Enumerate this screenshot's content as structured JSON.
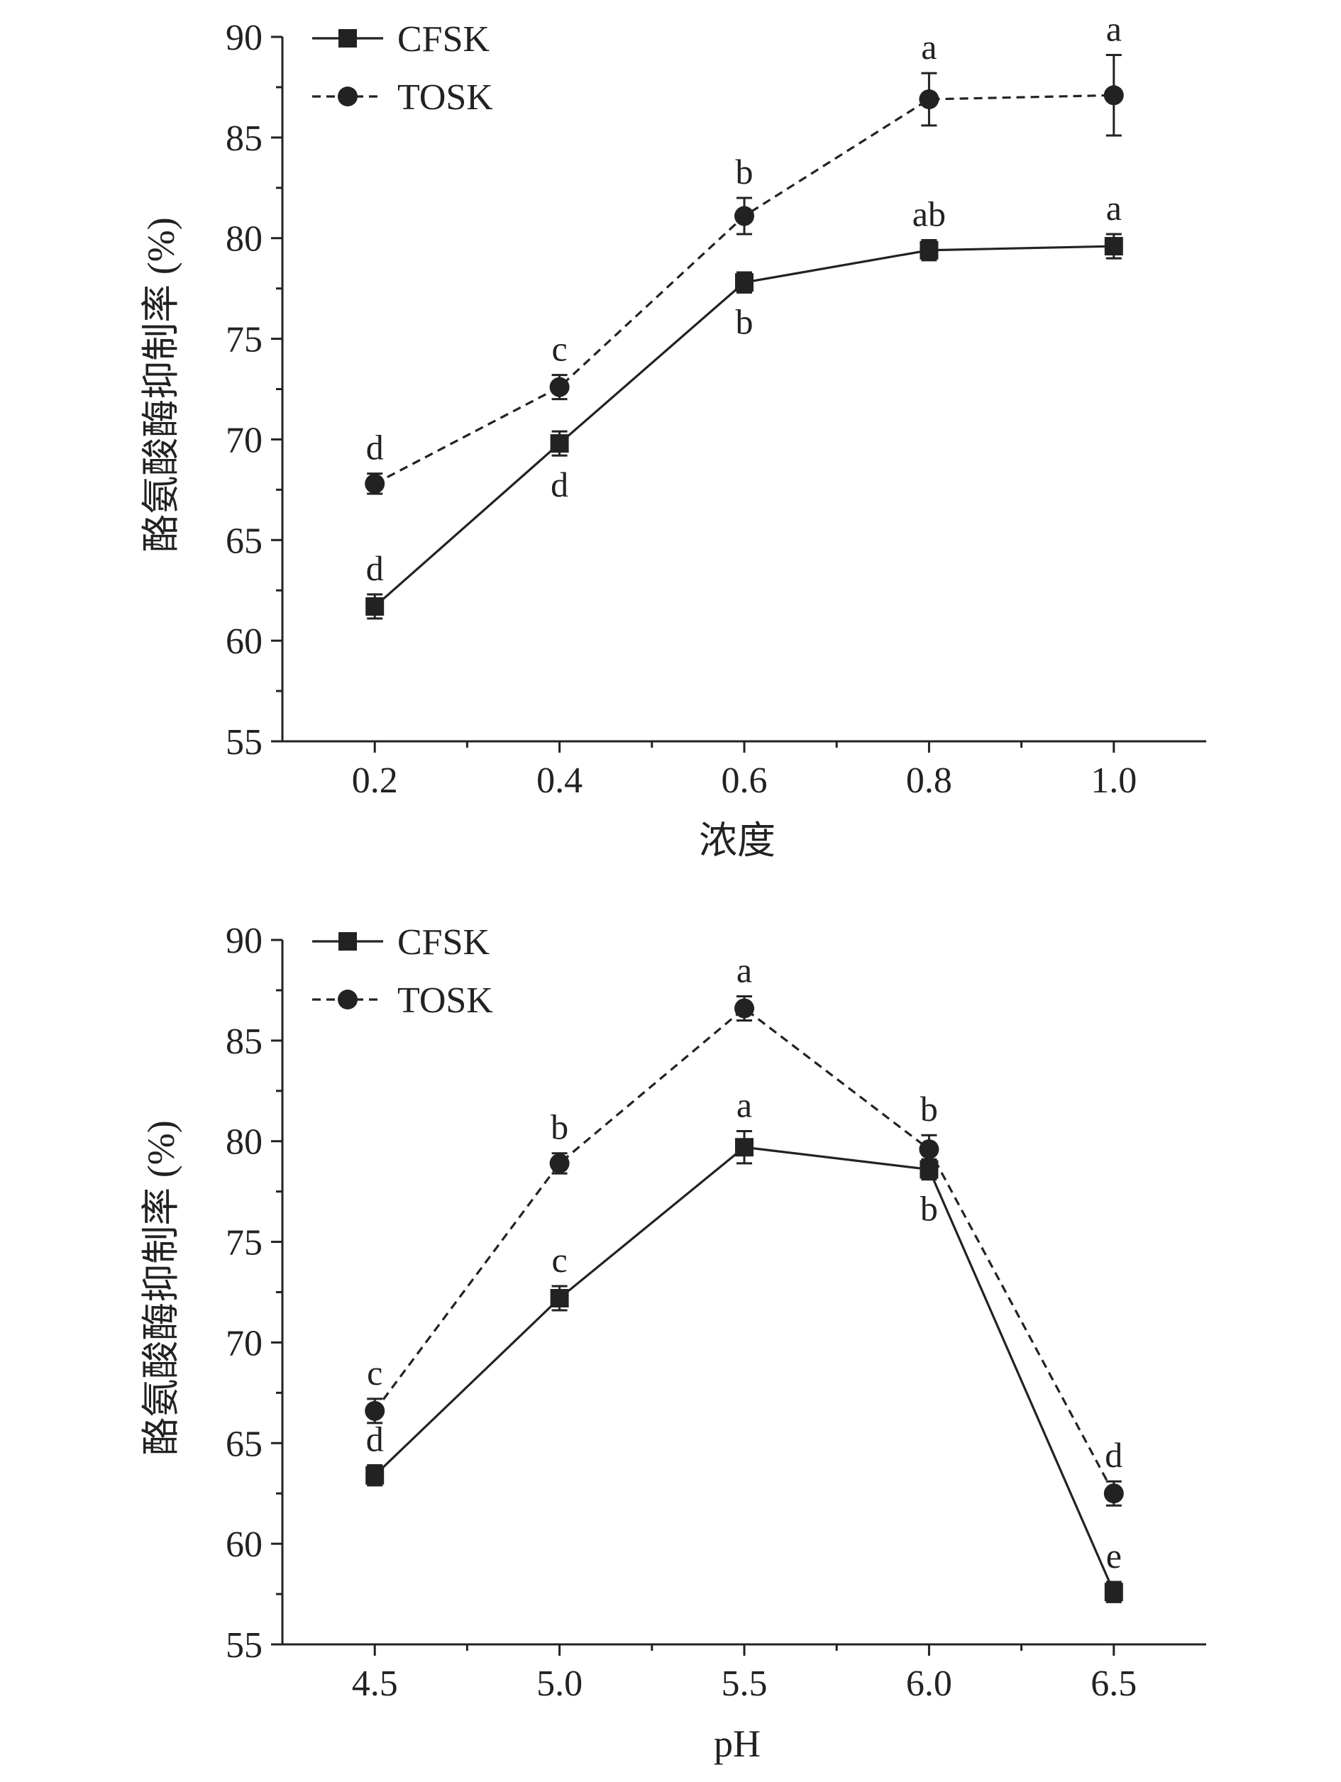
{
  "chart_data": [
    {
      "type": "line",
      "xlabel": "浓度",
      "ylabel": "酪氨酸酶抑制率 (%)",
      "x": [
        0.2,
        0.4,
        0.6,
        0.8,
        1.0
      ],
      "x_tick_labels": [
        "0.2",
        "0.4",
        "0.6",
        "0.8",
        "1.0"
      ],
      "xlim": [
        0.1,
        1.1
      ],
      "ylim": [
        55,
        90
      ],
      "y_ticks": [
        55,
        60,
        65,
        70,
        75,
        80,
        85,
        90
      ],
      "y_tick_labels": [
        "55",
        "60",
        "65",
        "70",
        "75",
        "80",
        "85",
        "90"
      ],
      "grid": false,
      "legend_position": "top-left",
      "series": [
        {
          "name": "CFSK",
          "line_style": "solid",
          "marker": "square",
          "values": [
            61.7,
            69.8,
            77.8,
            79.4,
            79.6
          ],
          "error": [
            0.6,
            0.6,
            0.5,
            0.5,
            0.6
          ],
          "labels": [
            "d",
            "d",
            "b",
            "ab",
            "a"
          ],
          "label_side": [
            "above",
            "below",
            "below",
            "above",
            "above"
          ]
        },
        {
          "name": "TOSK",
          "line_style": "dashed",
          "marker": "circle",
          "values": [
            67.8,
            72.6,
            81.1,
            86.9,
            87.1
          ],
          "error": [
            0.5,
            0.6,
            0.9,
            1.3,
            2.0
          ],
          "labels": [
            "d",
            "c",
            "b",
            "a",
            "a"
          ],
          "label_side": [
            "above",
            "above",
            "above",
            "above",
            "above"
          ]
        }
      ]
    },
    {
      "type": "line",
      "xlabel": "pH",
      "ylabel": "酪氨酸酶抑制率 (%)",
      "x": [
        4.5,
        5.0,
        5.5,
        6.0,
        6.5
      ],
      "x_tick_labels": [
        "4.5",
        "5.0",
        "5.5",
        "6.0",
        "6.5"
      ],
      "xlim": [
        4.25,
        6.75
      ],
      "ylim": [
        55,
        90
      ],
      "y_ticks": [
        55,
        60,
        65,
        70,
        75,
        80,
        85,
        90
      ],
      "y_tick_labels": [
        "55",
        "60",
        "65",
        "70",
        "75",
        "80",
        "85",
        "90"
      ],
      "grid": false,
      "legend_position": "top-left",
      "series": [
        {
          "name": "CFSK",
          "line_style": "solid",
          "marker": "square",
          "values": [
            63.4,
            72.2,
            79.7,
            78.6,
            57.6
          ],
          "error": [
            0.5,
            0.6,
            0.8,
            0.5,
            0.5
          ],
          "labels": [
            "d",
            "c",
            "a",
            "b",
            "e"
          ],
          "label_side": [
            "above",
            "above",
            "above",
            "below",
            "above"
          ]
        },
        {
          "name": "TOSK",
          "line_style": "dashed",
          "marker": "circle",
          "values": [
            66.6,
            78.9,
            86.6,
            79.6,
            62.5
          ],
          "error": [
            0.6,
            0.5,
            0.6,
            0.7,
            0.6
          ],
          "labels": [
            "c",
            "b",
            "a",
            "b",
            "d"
          ],
          "label_side": [
            "above",
            "above",
            "above",
            "above",
            "above"
          ]
        }
      ]
    }
  ]
}
